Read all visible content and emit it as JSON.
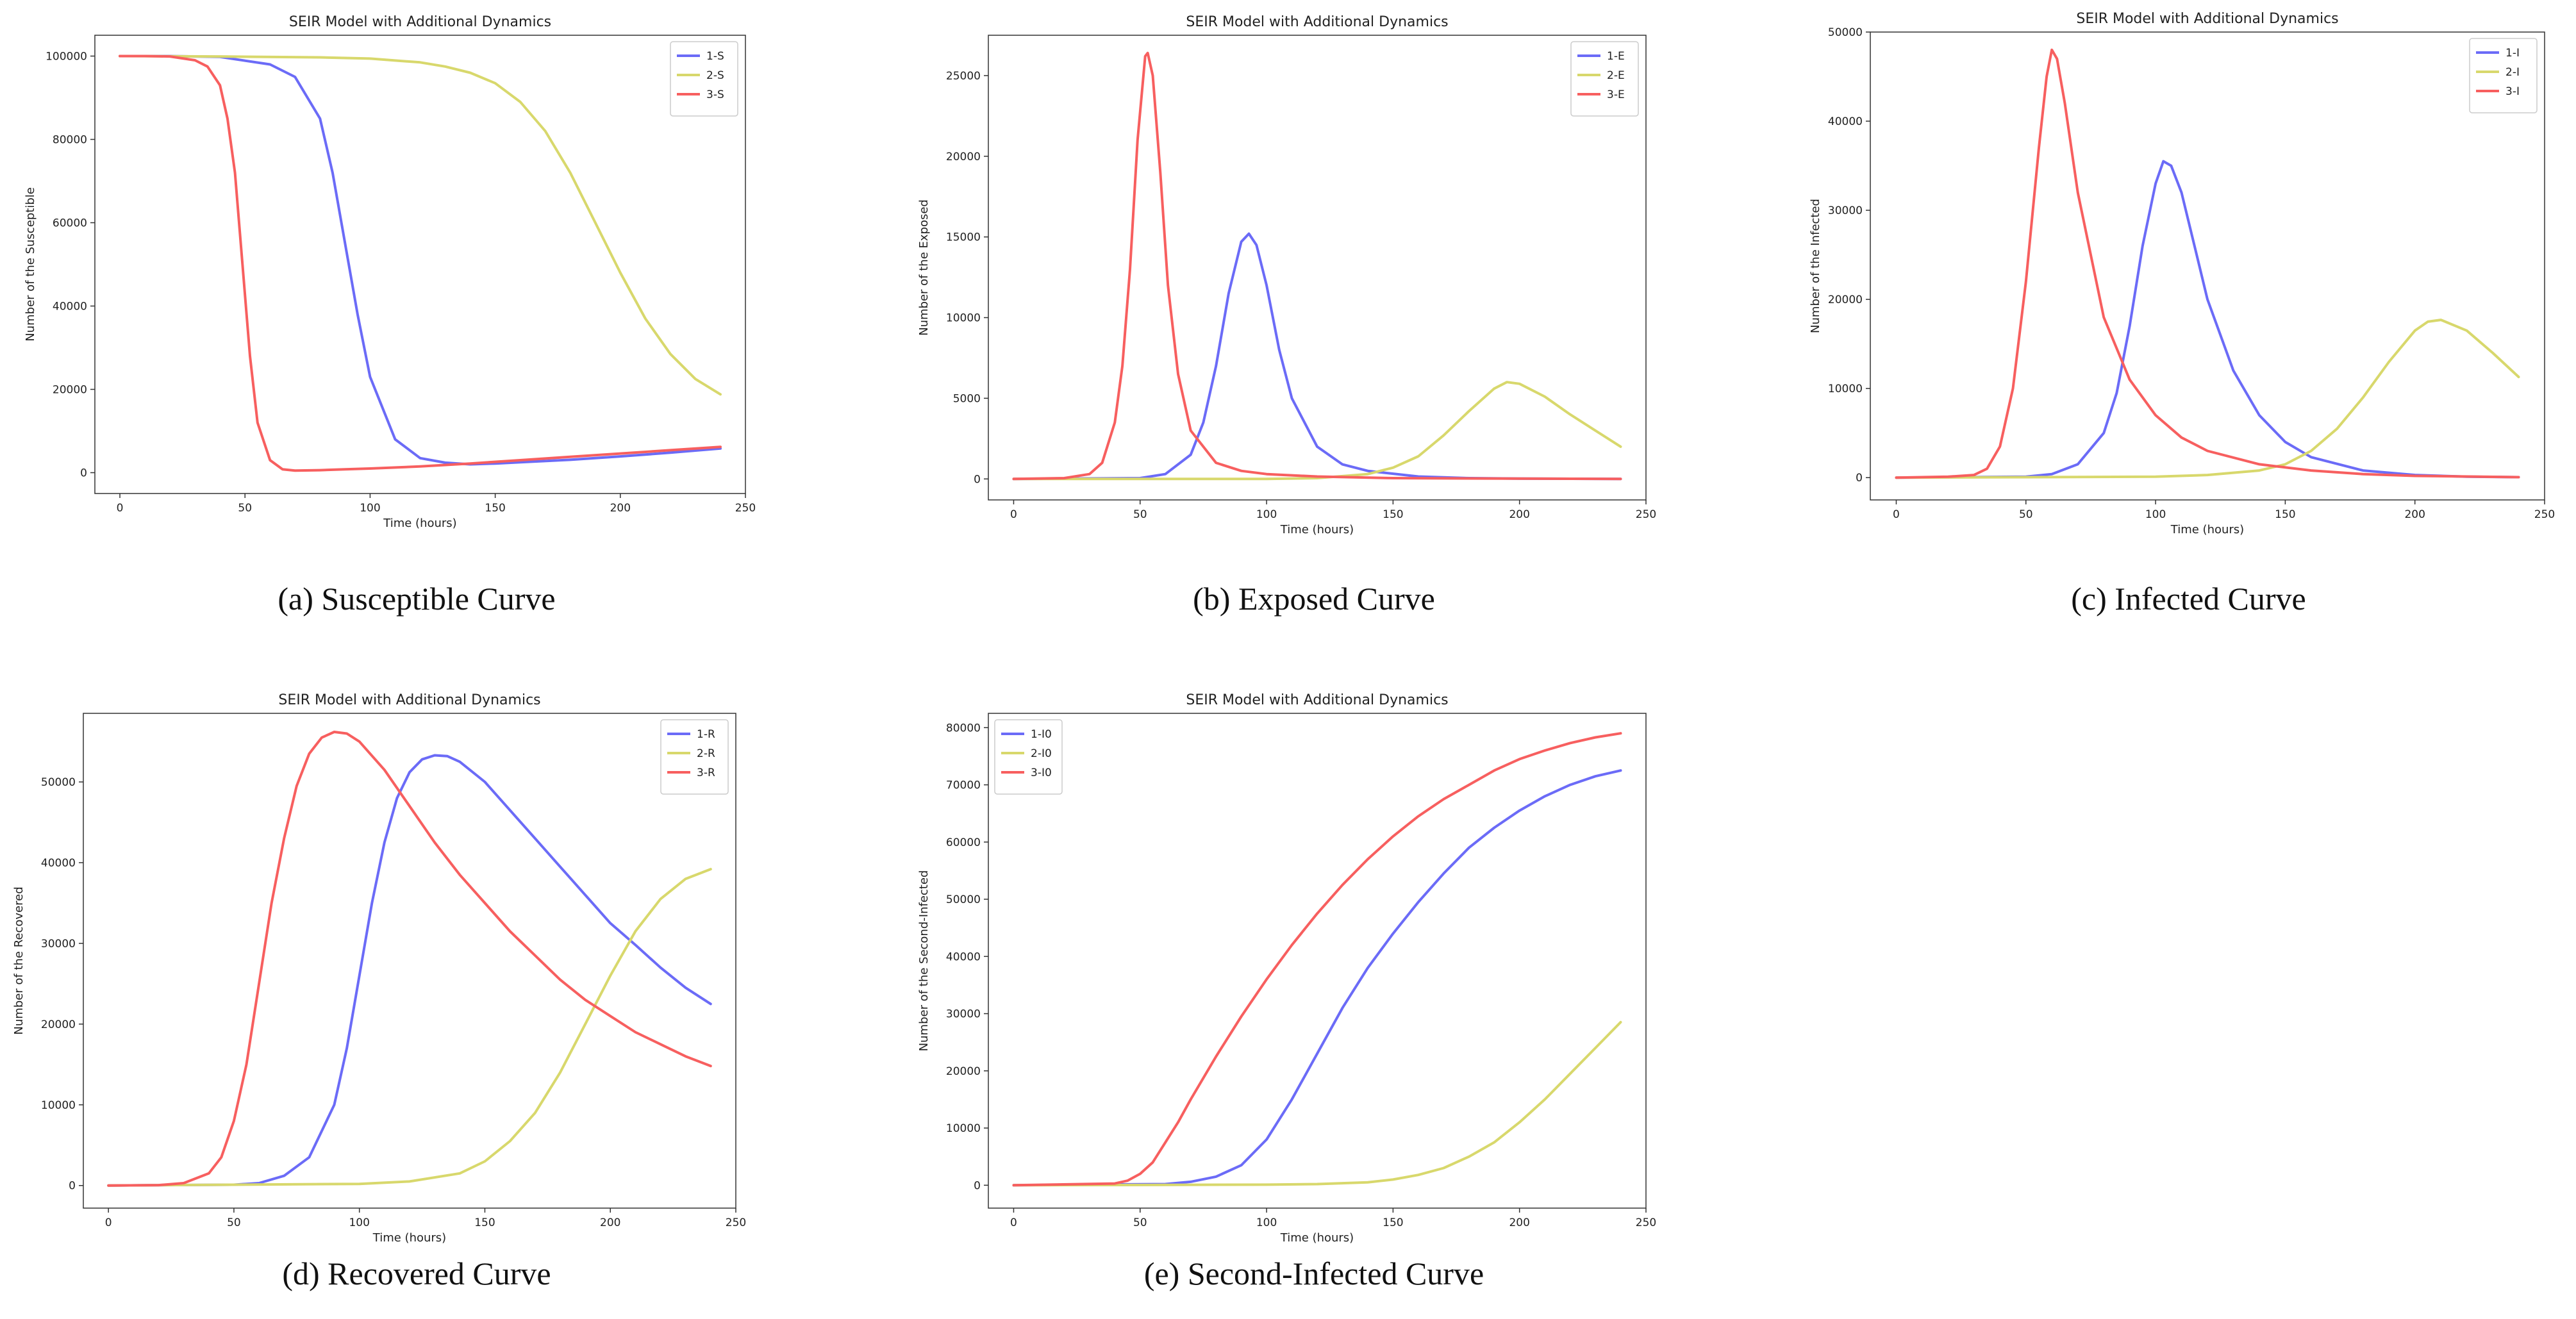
{
  "figure": {
    "captions": [
      "(a) Susceptible Curve",
      "(b) Exposed Curve",
      "(c) Infected Curve",
      "(d) Recovered Curve",
      "(e) Second-Infected Curve"
    ]
  },
  "chart_data": [
    {
      "type": "line",
      "title": "SEIR Model with Additional Dynamics",
      "xlabel": "Time (hours)",
      "ylabel": "Number of the Susceptible",
      "xlim": [
        -10,
        250
      ],
      "ylim": [
        -5000,
        105000
      ],
      "xticks": [
        0,
        50,
        100,
        150,
        200,
        250
      ],
      "yticks": [
        0,
        20000,
        40000,
        60000,
        80000,
        100000
      ],
      "legend": "top-right",
      "series": [
        {
          "name": "1-S",
          "color": "#6b6bf7",
          "x": [
            0,
            20,
            40,
            60,
            70,
            80,
            85,
            90,
            95,
            100,
            110,
            120,
            130,
            140,
            150,
            160,
            180,
            200,
            220,
            240
          ],
          "y": [
            100000,
            100000,
            99800,
            98000,
            95000,
            85000,
            72000,
            55000,
            38000,
            23000,
            8000,
            3500,
            2400,
            2000,
            2200,
            2500,
            3100,
            3900,
            4800,
            5800
          ]
        },
        {
          "name": "2-S",
          "color": "#d8d86c",
          "x": [
            0,
            40,
            80,
            100,
            120,
            130,
            140,
            150,
            160,
            170,
            180,
            190,
            200,
            210,
            220,
            230,
            240
          ],
          "y": [
            100000,
            99900,
            99700,
            99400,
            98500,
            97500,
            96000,
            93500,
            89000,
            82000,
            72000,
            60000,
            48000,
            37000,
            28500,
            22500,
            18800
          ]
        },
        {
          "name": "3-S",
          "color": "#f75f5f",
          "x": [
            0,
            10,
            20,
            30,
            35,
            40,
            43,
            46,
            49,
            52,
            55,
            60,
            65,
            70,
            80,
            90,
            100,
            120,
            140,
            160,
            180,
            200,
            220,
            240
          ],
          "y": [
            100000,
            100000,
            99900,
            99000,
            97500,
            93000,
            85000,
            72000,
            50000,
            28000,
            12000,
            3000,
            800,
            500,
            600,
            800,
            1000,
            1500,
            2200,
            3000,
            3800,
            4600,
            5400,
            6200
          ]
        }
      ]
    },
    {
      "type": "line",
      "title": "SEIR Model with Additional Dynamics",
      "xlabel": "Time (hours)",
      "ylabel": "Number of the Exposed",
      "xlim": [
        -10,
        250
      ],
      "ylim": [
        -1300,
        27500
      ],
      "xticks": [
        0,
        50,
        100,
        150,
        200,
        250
      ],
      "yticks": [
        0,
        5000,
        10000,
        15000,
        20000,
        25000
      ],
      "legend": "top-right",
      "series": [
        {
          "name": "1-E",
          "color": "#6b6bf7",
          "x": [
            0,
            50,
            60,
            70,
            75,
            80,
            85,
            90,
            93,
            96,
            100,
            105,
            110,
            120,
            130,
            140,
            160,
            180,
            200,
            240
          ],
          "y": [
            0,
            50,
            300,
            1500,
            3500,
            7000,
            11500,
            14700,
            15200,
            14500,
            12000,
            8000,
            5000,
            2000,
            900,
            500,
            150,
            50,
            20,
            0
          ]
        },
        {
          "name": "2-E",
          "color": "#d8d86c",
          "x": [
            0,
            100,
            120,
            140,
            150,
            160,
            170,
            180,
            190,
            195,
            200,
            210,
            220,
            230,
            240
          ],
          "y": [
            0,
            0,
            50,
            300,
            700,
            1400,
            2700,
            4200,
            5600,
            6000,
            5900,
            5100,
            4000,
            3000,
            2000
          ]
        },
        {
          "name": "3-E",
          "color": "#f75f5f",
          "x": [
            0,
            20,
            30,
            35,
            40,
            43,
            46,
            49,
            52,
            53,
            55,
            58,
            61,
            65,
            70,
            80,
            90,
            100,
            120,
            150,
            200,
            240
          ],
          "y": [
            0,
            50,
            300,
            1000,
            3500,
            7000,
            13000,
            21000,
            26200,
            26400,
            25000,
            19000,
            12000,
            6500,
            3000,
            1000,
            500,
            300,
            150,
            50,
            20,
            0
          ]
        }
      ]
    },
    {
      "type": "line",
      "title": "SEIR Model with Additional Dynamics",
      "xlabel": "Time (hours)",
      "ylabel": "Number of the Infected",
      "xlim": [
        -10,
        250
      ],
      "ylim": [
        -2500,
        50000
      ],
      "xticks": [
        0,
        50,
        100,
        150,
        200,
        250
      ],
      "yticks": [
        0,
        10000,
        20000,
        30000,
        40000,
        50000
      ],
      "legend": "top-right",
      "series": [
        {
          "name": "1-I",
          "color": "#6b6bf7",
          "x": [
            0,
            50,
            60,
            70,
            80,
            85,
            90,
            95,
            100,
            103,
            106,
            110,
            115,
            120,
            130,
            140,
            150,
            160,
            180,
            200,
            220,
            240
          ],
          "y": [
            0,
            100,
            400,
            1500,
            5000,
            9500,
            17000,
            26000,
            33000,
            35500,
            35000,
            32000,
            26000,
            20000,
            12000,
            7000,
            4000,
            2300,
            800,
            300,
            100,
            50
          ]
        },
        {
          "name": "2-I",
          "color": "#d8d86c",
          "x": [
            0,
            100,
            120,
            140,
            150,
            160,
            170,
            180,
            190,
            200,
            205,
            210,
            220,
            230,
            240
          ],
          "y": [
            0,
            100,
            300,
            800,
            1500,
            3000,
            5500,
            9000,
            13000,
            16500,
            17500,
            17700,
            16500,
            14000,
            11300
          ]
        },
        {
          "name": "3-I",
          "color": "#f75f5f",
          "x": [
            0,
            20,
            30,
            35,
            40,
            45,
            50,
            55,
            58,
            60,
            62,
            65,
            70,
            80,
            90,
            100,
            110,
            120,
            140,
            160,
            180,
            200,
            240
          ],
          "y": [
            0,
            100,
            300,
            1000,
            3500,
            10000,
            22000,
            37000,
            45000,
            48000,
            47000,
            42000,
            32000,
            18000,
            11000,
            7000,
            4500,
            3000,
            1500,
            800,
            400,
            200,
            50
          ]
        }
      ]
    },
    {
      "type": "line",
      "title": "SEIR Model with Additional Dynamics",
      "xlabel": "Time (hours)",
      "ylabel": "Number of the Recovered",
      "xlim": [
        -10,
        250
      ],
      "ylim": [
        -2800,
        58500
      ],
      "xticks": [
        0,
        50,
        100,
        150,
        200,
        250
      ],
      "yticks": [
        0,
        10000,
        20000,
        30000,
        40000,
        50000
      ],
      "legend": "top-right",
      "series": [
        {
          "name": "1-R",
          "color": "#6b6bf7",
          "x": [
            0,
            50,
            60,
            70,
            80,
            90,
            95,
            100,
            105,
            110,
            115,
            120,
            125,
            130,
            135,
            140,
            150,
            160,
            170,
            180,
            190,
            200,
            210,
            220,
            230,
            240
          ],
          "y": [
            0,
            100,
            300,
            1200,
            3500,
            10000,
            17000,
            26000,
            35000,
            42500,
            48000,
            51200,
            52800,
            53300,
            53200,
            52500,
            50000,
            46500,
            43000,
            39500,
            36000,
            32500,
            29800,
            27000,
            24500,
            22500
          ]
        },
        {
          "name": "2-R",
          "color": "#d8d86c",
          "x": [
            0,
            100,
            120,
            140,
            150,
            160,
            170,
            180,
            190,
            200,
            210,
            220,
            230,
            240
          ],
          "y": [
            0,
            200,
            500,
            1500,
            3000,
            5500,
            9000,
            14000,
            20000,
            26000,
            31500,
            35500,
            38000,
            39200
          ]
        },
        {
          "name": "3-R",
          "color": "#f75f5f",
          "x": [
            0,
            20,
            30,
            40,
            45,
            50,
            55,
            60,
            65,
            70,
            75,
            80,
            85,
            90,
            95,
            100,
            110,
            120,
            130,
            140,
            150,
            160,
            170,
            180,
            190,
            200,
            210,
            220,
            230,
            240
          ],
          "y": [
            0,
            50,
            300,
            1500,
            3500,
            8000,
            15000,
            25000,
            35000,
            43000,
            49500,
            53500,
            55500,
            56200,
            56000,
            55000,
            51500,
            47000,
            42500,
            38500,
            35000,
            31500,
            28500,
            25500,
            23000,
            21000,
            19000,
            17500,
            16000,
            14800
          ]
        }
      ]
    },
    {
      "type": "line",
      "title": "SEIR Model with Additional Dynamics",
      "xlabel": "Time (hours)",
      "ylabel": "Number of the Second-Infected",
      "xlim": [
        -10,
        250
      ],
      "ylim": [
        -4000,
        82500
      ],
      "xticks": [
        0,
        50,
        100,
        150,
        200,
        250
      ],
      "yticks": [
        0,
        10000,
        20000,
        30000,
        40000,
        50000,
        60000,
        70000,
        80000
      ],
      "legend": "top-left",
      "series": [
        {
          "name": "1-I0",
          "color": "#6b6bf7",
          "x": [
            0,
            60,
            70,
            80,
            90,
            100,
            110,
            120,
            130,
            140,
            150,
            160,
            170,
            180,
            190,
            200,
            210,
            220,
            230,
            240
          ],
          "y": [
            0,
            200,
            600,
            1500,
            3500,
            8000,
            15000,
            23000,
            31000,
            38000,
            44000,
            49500,
            54500,
            59000,
            62500,
            65500,
            68000,
            70000,
            71500,
            72500
          ]
        },
        {
          "name": "2-I0",
          "color": "#d8d86c",
          "x": [
            0,
            100,
            120,
            140,
            150,
            160,
            170,
            180,
            190,
            200,
            210,
            220,
            230,
            240
          ],
          "y": [
            0,
            100,
            200,
            500,
            1000,
            1800,
            3000,
            5000,
            7500,
            11000,
            15000,
            19500,
            24000,
            28500
          ]
        },
        {
          "name": "3-I0",
          "color": "#f75f5f",
          "x": [
            0,
            40,
            45,
            50,
            55,
            60,
            65,
            70,
            80,
            90,
            100,
            110,
            120,
            130,
            140,
            150,
            160,
            170,
            180,
            190,
            200,
            210,
            220,
            230,
            240
          ],
          "y": [
            0,
            300,
            800,
            2000,
            4000,
            7500,
            11000,
            15000,
            22500,
            29500,
            36000,
            42000,
            47500,
            52500,
            57000,
            61000,
            64500,
            67500,
            70000,
            72500,
            74500,
            76000,
            77300,
            78300,
            79000
          ]
        }
      ]
    }
  ]
}
